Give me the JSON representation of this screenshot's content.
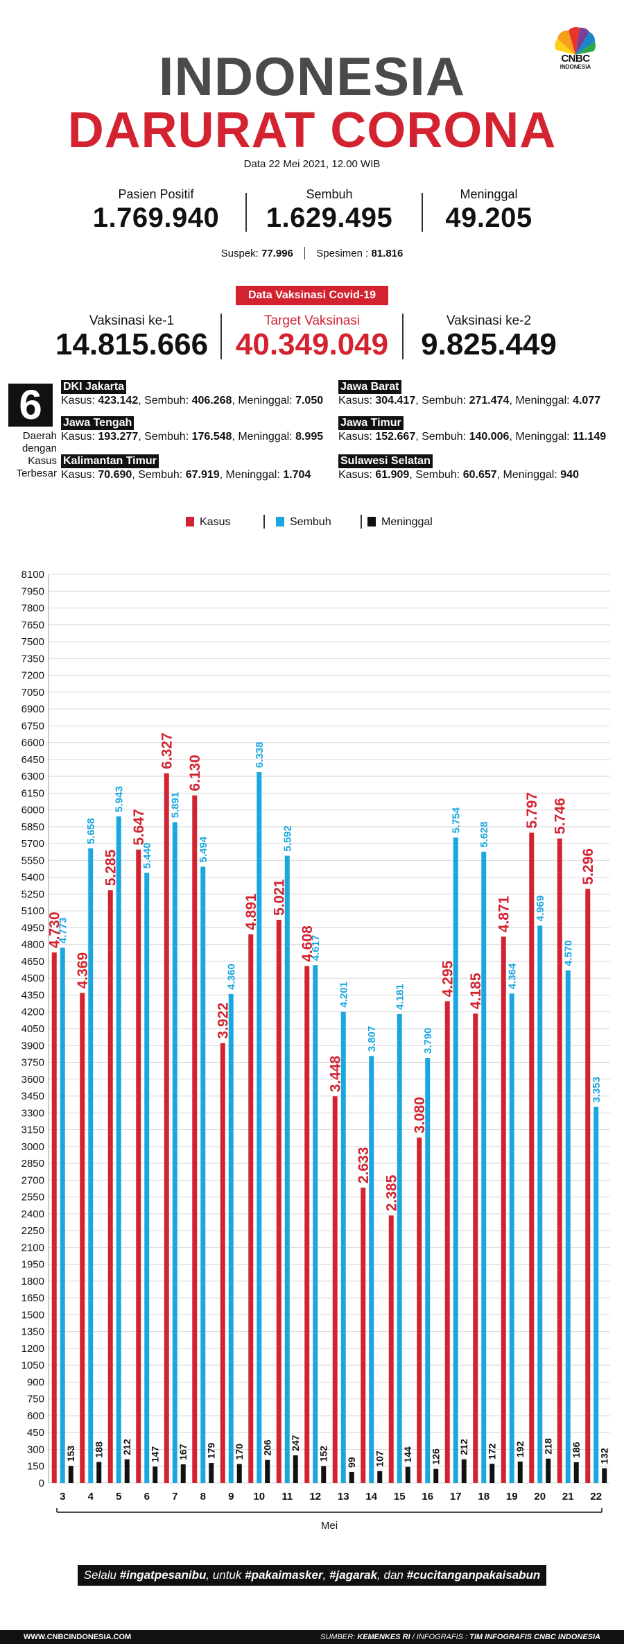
{
  "brand": {
    "logo_text": "CNBC",
    "logo_sub": "INDONESIA",
    "logo_icon": "peacock-icon"
  },
  "header": {
    "title_line1": "INDONESIA",
    "title_line2": "DARURAT CORONA",
    "date": "Data 22 Mei 2021, 12.00 WIB"
  },
  "stats": [
    {
      "label": "Pasien Positif",
      "value": "1.769.940"
    },
    {
      "label": "Sembuh",
      "value": "1.629.495"
    },
    {
      "label": "Meninggal",
      "value": "49.205"
    }
  ],
  "sub_stats": {
    "suspek_label": "Suspek:",
    "suspek_value": "77.996",
    "spesimen_label": "Spesimen :",
    "spesimen_value": "81.816"
  },
  "vaccination": {
    "badge": "Data Vaksinasi Covid-19",
    "items": [
      {
        "label": "Vaksinasi ke-1",
        "value": "14.815.666"
      },
      {
        "label": "Target Vaksinasi",
        "value": "40.349.049"
      },
      {
        "label": "Vaksinasi ke-2",
        "value": "9.825.449"
      }
    ]
  },
  "regions": {
    "count": "6",
    "caption": [
      "Daerah",
      "dengan",
      "Kasus",
      "Terbesar"
    ],
    "k_label": "Kasus:",
    "s_label": "Sembuh:",
    "m_label": "Meninggal:",
    "items": [
      {
        "name": "DKI Jakarta",
        "kasus": "423.142",
        "sembuh": "406.268",
        "meninggal": "7.050"
      },
      {
        "name": "Jawa Barat",
        "kasus": "304.417",
        "sembuh": "271.474",
        "meninggal": "4.077"
      },
      {
        "name": "Jawa Tengah",
        "kasus": "193.277",
        "sembuh": "176.548",
        "meninggal": "8.995"
      },
      {
        "name": "Jawa Timur",
        "kasus": "152.667",
        "sembuh": "140.006",
        "meninggal": "11.149"
      },
      {
        "name": "Kalimantan Timur",
        "kasus": "70.690",
        "sembuh": "67.919",
        "meninggal": "1.704"
      },
      {
        "name": "Sulawesi Selatan",
        "kasus": "61.909",
        "sembuh": "60.657",
        "meninggal": "940"
      }
    ]
  },
  "colors": {
    "kasus": "#d32330",
    "sembuh": "#1aa7e0",
    "meninggal": "#111111",
    "title_gray": "#4a4a4a"
  },
  "chart_data": {
    "type": "bar",
    "xlabel": "Mei",
    "categories": [
      "3",
      "4",
      "5",
      "6",
      "7",
      "8",
      "9",
      "10",
      "11",
      "12",
      "13",
      "14",
      "15",
      "16",
      "17",
      "18",
      "19",
      "20",
      "21",
      "22"
    ],
    "ylim": [
      0,
      8100
    ],
    "ytick_step": 150,
    "grid": true,
    "legend_position": "top",
    "series": [
      {
        "name": "Kasus",
        "color": "#d32330",
        "values": [
          4730,
          4369,
          5285,
          5647,
          6327,
          6130,
          3922,
          4891,
          5021,
          4608,
          3448,
          2633,
          2385,
          3080,
          4295,
          4185,
          4871,
          5797,
          5746,
          5296
        ],
        "labels": [
          "4.730",
          "4.369",
          "5.285",
          "5.647",
          "6.327",
          "6.130",
          "3.922",
          "4.891",
          "5.021",
          "4.608",
          "3.448",
          "2.633",
          "2.385",
          "3.080",
          "4.295",
          "4.185",
          "4.871",
          "5.797",
          "5.746",
          "5.296"
        ]
      },
      {
        "name": "Sembuh",
        "color": "#1aa7e0",
        "values": [
          4773,
          5658,
          5943,
          5440,
          5891,
          5494,
          4360,
          6338,
          5592,
          4617,
          4201,
          3807,
          4181,
          3790,
          5754,
          5628,
          4364,
          4969,
          4570,
          3353
        ],
        "labels": [
          "4.773",
          "5.658",
          "5.943",
          "5.440",
          "5.891",
          "5.494",
          "4.360",
          "6.338",
          "5.592",
          "4.617",
          "4.201",
          "3.807",
          "4.181",
          "3.790",
          "5.754",
          "5.628",
          "4.364",
          "4.969",
          "4.570",
          "3.353"
        ]
      },
      {
        "name": "Meninggal",
        "color": "#111111",
        "values": [
          153,
          188,
          212,
          147,
          167,
          179,
          170,
          206,
          247,
          152,
          99,
          107,
          144,
          126,
          212,
          172,
          192,
          218,
          186,
          132
        ],
        "labels": [
          "153",
          "188",
          "212",
          "147",
          "167",
          "179",
          "170",
          "206",
          "247",
          "152",
          "99",
          "107",
          "144",
          "126",
          "212",
          "172",
          "192",
          "218",
          "186",
          "132"
        ]
      }
    ]
  },
  "footer": {
    "banner_pre": "Selalu ",
    "banner_tag1": "#ingatpesanibu",
    "banner_mid1": ", untuk ",
    "banner_tag2": "#pakaimasker",
    "banner_mid2": ", ",
    "banner_tag3": "#jagarak",
    "banner_mid3": ", dan ",
    "banner_tag4": "#cucitanganpakaisabun",
    "website": "WWW.CNBCINDONESIA.COM",
    "source_label": "SUMBER: ",
    "source_value": "KEMENKES RI",
    "infographic_label": " / INFOGRAFIS : ",
    "infographic_value": "TIM INFOGRAFIS CNBC INDONESIA"
  }
}
